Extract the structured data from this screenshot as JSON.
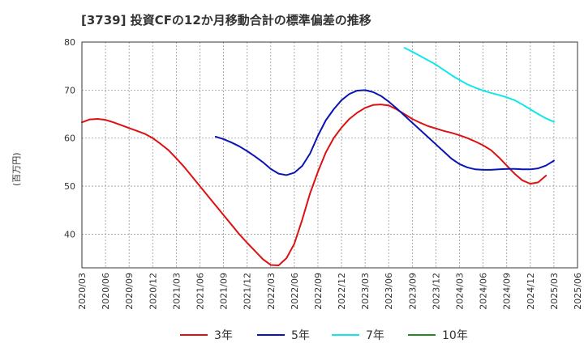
{
  "chart_data": {
    "type": "line",
    "title": "[3739]  投資CFの12か月移動合計の標準偏差の推移",
    "ylabel": "(百万円)",
    "xlabel": "",
    "ylim": [
      33,
      80
    ],
    "yticks": [
      40,
      50,
      60,
      70,
      80
    ],
    "grid": true,
    "legend_position": "bottom",
    "x": [
      "2020/03",
      "2020/06",
      "2020/09",
      "2020/12",
      "2021/03",
      "2021/06",
      "2021/09",
      "2021/12",
      "2022/03",
      "2022/06",
      "2022/09",
      "2022/12",
      "2023/03",
      "2023/06",
      "2023/09",
      "2023/12",
      "2024/03",
      "2024/06",
      "2024/09",
      "2024/12",
      "2025/03",
      "2025/06"
    ],
    "series": [
      {
        "name": "3年",
        "color": "#dd1111",
        "points": [
          [
            "2020/03",
            63.3
          ],
          [
            "2020/04",
            63.9
          ],
          [
            "2020/05",
            64.0
          ],
          [
            "2020/06",
            63.8
          ],
          [
            "2020/07",
            63.3
          ],
          [
            "2020/08",
            62.7
          ],
          [
            "2020/09",
            62.1
          ],
          [
            "2020/10",
            61.5
          ],
          [
            "2020/11",
            60.9
          ],
          [
            "2020/12",
            60.0
          ],
          [
            "2021/01",
            58.8
          ],
          [
            "2021/02",
            57.5
          ],
          [
            "2021/03",
            55.8
          ],
          [
            "2021/04",
            54.0
          ],
          [
            "2021/05",
            52.0
          ],
          [
            "2021/06",
            50.0
          ],
          [
            "2021/07",
            48.0
          ],
          [
            "2021/08",
            46.0
          ],
          [
            "2021/09",
            44.0
          ],
          [
            "2021/10",
            42.0
          ],
          [
            "2021/11",
            40.0
          ],
          [
            "2021/12",
            38.2
          ],
          [
            "2022/01",
            36.5
          ],
          [
            "2022/02",
            34.8
          ],
          [
            "2022/03",
            33.6
          ],
          [
            "2022/04",
            33.5
          ],
          [
            "2022/05",
            35.0
          ],
          [
            "2022/06",
            38.0
          ],
          [
            "2022/07",
            43.0
          ],
          [
            "2022/08",
            48.5
          ],
          [
            "2022/09",
            53.0
          ],
          [
            "2022/10",
            57.0
          ],
          [
            "2022/11",
            60.0
          ],
          [
            "2022/12",
            62.2
          ],
          [
            "2023/01",
            64.0
          ],
          [
            "2023/02",
            65.3
          ],
          [
            "2023/03",
            66.3
          ],
          [
            "2023/04",
            66.9
          ],
          [
            "2023/05",
            67.0
          ],
          [
            "2023/06",
            66.8
          ],
          [
            "2023/07",
            66.0
          ],
          [
            "2023/08",
            65.0
          ],
          [
            "2023/09",
            64.0
          ],
          [
            "2023/10",
            63.2
          ],
          [
            "2023/11",
            62.5
          ],
          [
            "2023/12",
            62.0
          ],
          [
            "2024/01",
            61.5
          ],
          [
            "2024/02",
            61.1
          ],
          [
            "2024/03",
            60.6
          ],
          [
            "2024/04",
            60.0
          ],
          [
            "2024/05",
            59.3
          ],
          [
            "2024/06",
            58.5
          ],
          [
            "2024/07",
            57.5
          ],
          [
            "2024/08",
            56.0
          ],
          [
            "2024/09",
            54.3
          ],
          [
            "2024/10",
            52.6
          ],
          [
            "2024/11",
            51.2
          ],
          [
            "2024/12",
            50.5
          ],
          [
            "2025/01",
            50.8
          ],
          [
            "2025/02",
            52.2
          ]
        ]
      },
      {
        "name": "5年",
        "color": "#0a14b4",
        "points": [
          [
            "2021/08",
            60.3
          ],
          [
            "2021/09",
            59.8
          ],
          [
            "2021/10",
            59.1
          ],
          [
            "2021/11",
            58.3
          ],
          [
            "2021/12",
            57.3
          ],
          [
            "2022/01",
            56.2
          ],
          [
            "2022/02",
            55.0
          ],
          [
            "2022/03",
            53.6
          ],
          [
            "2022/04",
            52.6
          ],
          [
            "2022/05",
            52.3
          ],
          [
            "2022/06",
            52.8
          ],
          [
            "2022/07",
            54.2
          ],
          [
            "2022/08",
            56.8
          ],
          [
            "2022/09",
            60.5
          ],
          [
            "2022/10",
            63.7
          ],
          [
            "2022/11",
            66.0
          ],
          [
            "2022/12",
            67.9
          ],
          [
            "2023/01",
            69.2
          ],
          [
            "2023/02",
            69.9
          ],
          [
            "2023/03",
            70.0
          ],
          [
            "2023/04",
            69.6
          ],
          [
            "2023/05",
            68.8
          ],
          [
            "2023/06",
            67.6
          ],
          [
            "2023/07",
            66.2
          ],
          [
            "2023/08",
            64.7
          ],
          [
            "2023/09",
            63.2
          ],
          [
            "2023/10",
            61.7
          ],
          [
            "2023/11",
            60.2
          ],
          [
            "2023/12",
            58.7
          ],
          [
            "2024/01",
            57.2
          ],
          [
            "2024/02",
            55.7
          ],
          [
            "2024/03",
            54.6
          ],
          [
            "2024/04",
            53.9
          ],
          [
            "2024/05",
            53.5
          ],
          [
            "2024/06",
            53.4
          ],
          [
            "2024/07",
            53.4
          ],
          [
            "2024/08",
            53.5
          ],
          [
            "2024/09",
            53.6
          ],
          [
            "2024/10",
            53.6
          ],
          [
            "2024/11",
            53.5
          ],
          [
            "2024/12",
            53.5
          ],
          [
            "2025/01",
            53.7
          ],
          [
            "2025/02",
            54.3
          ],
          [
            "2025/03",
            55.3
          ]
        ]
      },
      {
        "name": "7年",
        "color": "#11e6ee",
        "points": [
          [
            "2023/08",
            78.8
          ],
          [
            "2023/09",
            78.0
          ],
          [
            "2023/10",
            77.1
          ],
          [
            "2023/11",
            76.2
          ],
          [
            "2023/12",
            75.3
          ],
          [
            "2024/01",
            74.2
          ],
          [
            "2024/02",
            73.1
          ],
          [
            "2024/03",
            72.1
          ],
          [
            "2024/04",
            71.2
          ],
          [
            "2024/05",
            70.5
          ],
          [
            "2024/06",
            69.9
          ],
          [
            "2024/07",
            69.4
          ],
          [
            "2024/08",
            69.0
          ],
          [
            "2024/09",
            68.5
          ],
          [
            "2024/10",
            67.9
          ],
          [
            "2024/11",
            67.0
          ],
          [
            "2024/12",
            66.0
          ],
          [
            "2025/01",
            65.0
          ],
          [
            "2025/02",
            64.1
          ],
          [
            "2025/03",
            63.4
          ]
        ]
      },
      {
        "name": "10年",
        "color": "#228b22",
        "points": []
      }
    ]
  }
}
